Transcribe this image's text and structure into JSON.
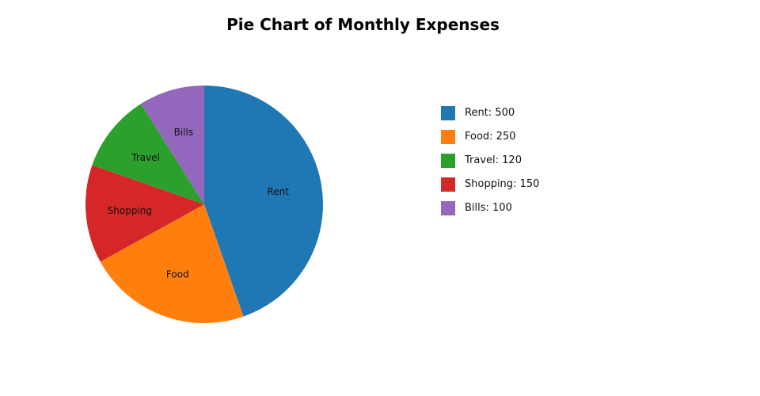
{
  "chart_data": {
    "type": "pie",
    "title": "Pie Chart of Monthly Expenses",
    "categories": [
      "Rent",
      "Food",
      "Travel",
      "Shopping",
      "Bills"
    ],
    "values": [
      500,
      250,
      120,
      150,
      100
    ],
    "colors": [
      "#1f77b4",
      "#ff7f0e",
      "#2ca02c",
      "#d62728",
      "#9467bd"
    ],
    "slice_order": [
      "Rent",
      "Food",
      "Shopping",
      "Travel",
      "Bills"
    ],
    "direction": "clockwise",
    "start_angle_deg": 90,
    "legend": {
      "placement": "right",
      "entries": [
        "Rent: 500",
        "Food: 250",
        "Travel: 120",
        "Shopping: 150",
        "Bills: 100"
      ]
    }
  }
}
